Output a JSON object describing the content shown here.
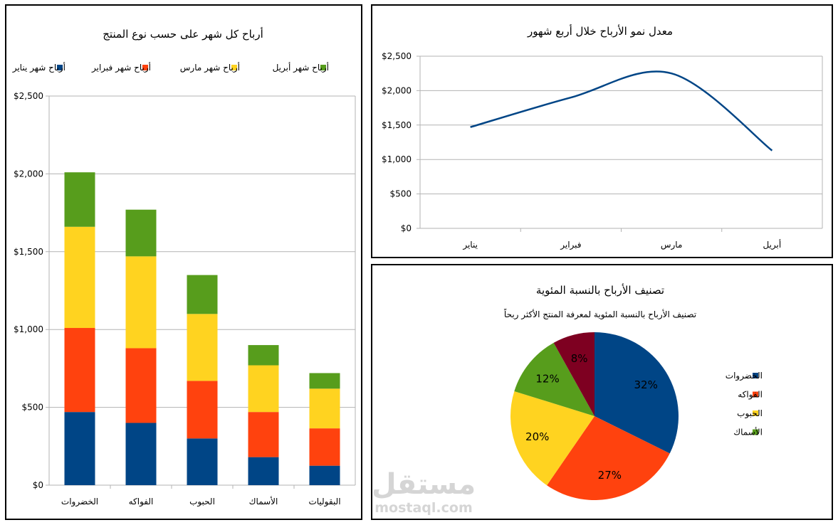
{
  "chart_data": [
    {
      "type": "bar",
      "stacked": true,
      "title": "أرباح كل شهر على حسب نوع المنتج",
      "categories": [
        "الخضروات",
        "الفواكه",
        "الحبوب",
        "الأسماك",
        "البقوليات"
      ],
      "series": [
        {
          "name": "أرباح شهر يناير",
          "color": "#004586",
          "values": [
            470,
            400,
            300,
            180,
            125
          ]
        },
        {
          "name": "أرباح شهر فبراير",
          "color": "#ff420e",
          "values": [
            540,
            480,
            370,
            290,
            240
          ]
        },
        {
          "name": "أرباح شهر مارس",
          "color": "#ffd320",
          "values": [
            650,
            590,
            430,
            300,
            255
          ]
        },
        {
          "name": "أرباح شهر أبريل",
          "color": "#579d1c",
          "values": [
            350,
            300,
            250,
            130,
            100
          ]
        }
      ],
      "ylim": [
        0,
        2500
      ],
      "yticks": [
        "$0",
        "$500",
        "$1,000",
        "$1,500",
        "$2,000",
        "$2,500"
      ],
      "grid": true,
      "legend": "top"
    },
    {
      "type": "line",
      "title": "معدل نمو الأرباح خلال أربع شهور",
      "categories": [
        "يناير",
        "فبراير",
        "مارس",
        "أبريل"
      ],
      "series": [
        {
          "color": "#004586",
          "values": [
            1470,
            1900,
            2250,
            1130
          ]
        }
      ],
      "ylim": [
        0,
        2500
      ],
      "yticks": [
        "$0",
        "$500",
        "$1,000",
        "$1,500",
        "$2,000",
        "$2,500"
      ],
      "grid": true
    },
    {
      "type": "pie",
      "title": "تصنيف الأرباح بالنسبة المئوية",
      "subtitle": "تصنيف الأرباح بالنسبة المئوية لمعرفة المنتج الأكثر ربحاً",
      "slices": [
        {
          "label": "الخضروات",
          "value": 32,
          "display": "32%",
          "color": "#004586",
          "in_legend": true
        },
        {
          "label": "الفواكه",
          "value": 27,
          "display": "27%",
          "color": "#ff420e",
          "in_legend": true
        },
        {
          "label": "الحبوب",
          "value": 20,
          "display": "20%",
          "color": "#ffd320",
          "in_legend": true
        },
        {
          "label": "الأسماك",
          "value": 12,
          "display": "12%",
          "color": "#579d1c",
          "in_legend": true
        },
        {
          "label": "",
          "value": 8,
          "display": "8%",
          "color": "#7e0021",
          "in_legend": false
        }
      ],
      "legend": "right"
    }
  ],
  "watermark": {
    "arabic": "مستقل",
    "latin": "mostaql.com",
    "color": "#d5d5d5"
  }
}
